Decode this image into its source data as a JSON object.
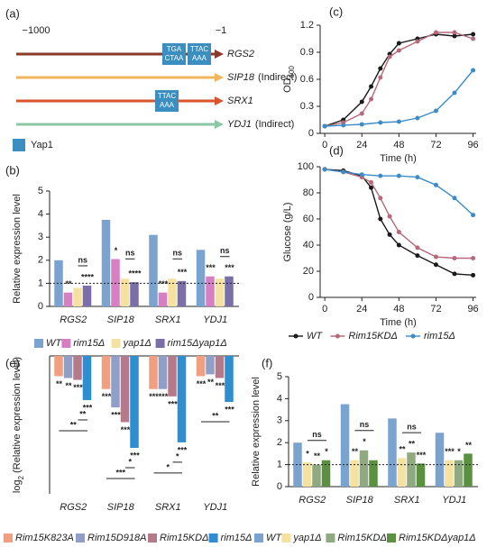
{
  "diagram": {
    "panel": "(a)",
    "start": "−1000",
    "end": "−1",
    "legend": "Yap1",
    "genes": [
      {
        "name": "RGS2",
        "color": "#8b3a2a",
        "sites": [
          [
            "TGA",
            "CTAA"
          ],
          [
            "TTAC",
            "AAA"
          ]
        ]
      },
      {
        "name": "SIP18",
        "note": "(Indirect)",
        "color": "#f2b45c",
        "sites": []
      },
      {
        "name": "SRX1",
        "color": "#d9532b",
        "sites": [
          [
            "TTAC",
            "AAA"
          ]
        ]
      },
      {
        "name": "YDJ1",
        "note": "(Indirect)",
        "color": "#8cc7a5",
        "sites": []
      }
    ]
  },
  "chart_data": [
    {
      "type": "bar",
      "panel": "(b)",
      "ylabel": [
        {
          "text": "Relative expression level"
        }
      ],
      "categories": [
        "RGS2",
        "SIP18",
        "SRX1",
        "YDJ1"
      ],
      "series": [
        {
          "name": "WT",
          "color": "#7ba3cf",
          "values": [
            2.0,
            3.75,
            3.1,
            2.45
          ]
        },
        {
          "name": "rim15Δ",
          "color": "#d67fc2",
          "values": [
            0.6,
            2.05,
            0.6,
            1.3
          ]
        },
        {
          "name": "yap1Δ",
          "color": "#f6e2a0",
          "values": [
            0.8,
            1.2,
            1.2,
            1.2
          ]
        },
        {
          "name": "rim15Δyap1Δ",
          "color": "#7a6fa8",
          "values": [
            0.9,
            1.05,
            1.1,
            1.3
          ]
        }
      ],
      "ylim": [
        0,
        5
      ],
      "yticks": [
        0,
        1,
        2,
        3,
        4,
        5
      ],
      "reference_line": 1,
      "legend": "below",
      "annotations": [
        {
          "category": 0,
          "series": 1,
          "text": "**"
        },
        {
          "category": 0,
          "series": 3,
          "text": "****"
        },
        {
          "category": 0,
          "from": 2,
          "to": 3,
          "text": "ns"
        },
        {
          "category": 1,
          "series": 1,
          "text": "*"
        },
        {
          "category": 1,
          "series": 3,
          "text": "****"
        },
        {
          "category": 1,
          "from": 2,
          "to": 3,
          "text": "ns"
        },
        {
          "category": 2,
          "series": 1,
          "text": "***"
        },
        {
          "category": 2,
          "series": 3,
          "text": "***"
        },
        {
          "category": 2,
          "from": 2,
          "to": 3,
          "text": "ns"
        },
        {
          "category": 3,
          "series": 1,
          "text": "***"
        },
        {
          "category": 3,
          "series": 3,
          "text": "***"
        },
        {
          "category": 3,
          "from": 2,
          "to": 3,
          "text": "ns"
        }
      ]
    },
    {
      "type": "line",
      "panel": "(c)",
      "ylabel": [
        {
          "text": "OD"
        },
        {
          "text": "600",
          "sub": true
        }
      ],
      "xlabel": "Time (h)",
      "series": [
        {
          "name": "WT",
          "color": "#1a1a1a",
          "x": [
            0,
            12,
            24,
            30,
            36,
            42,
            48,
            60,
            72,
            84,
            96
          ],
          "values": [
            0.08,
            0.15,
            0.35,
            0.52,
            0.72,
            0.88,
            1.0,
            1.05,
            1.1,
            1.08,
            1.1
          ]
        },
        {
          "name": "Rim15KDΔ",
          "color": "#b5697a",
          "x": [
            0,
            12,
            24,
            30,
            36,
            42,
            48,
            60,
            72,
            84,
            96
          ],
          "values": [
            0.08,
            0.12,
            0.22,
            0.38,
            0.62,
            0.85,
            0.92,
            1.02,
            1.12,
            1.12,
            1.05
          ]
        },
        {
          "name": "rim15Δ",
          "color": "#3d8cc8",
          "x": [
            0,
            12,
            24,
            36,
            48,
            60,
            72,
            84,
            96
          ],
          "values": [
            0.08,
            0.09,
            0.1,
            0.12,
            0.13,
            0.17,
            0.25,
            0.45,
            0.7
          ]
        }
      ],
      "xlim": [
        -3,
        98
      ],
      "xticks": [
        0,
        24,
        48,
        72,
        96
      ],
      "ylim": [
        0,
        1.2
      ],
      "yticks": [
        0,
        0.3,
        0.6,
        0.9,
        1.2
      ]
    },
    {
      "type": "line",
      "panel": "(d)",
      "ylabel": [
        {
          "text": "Glucose (g/L)"
        }
      ],
      "xlabel": "Time (h)",
      "series": [
        {
          "name": "WT",
          "color": "#1a1a1a",
          "x": [
            0,
            12,
            24,
            30,
            36,
            42,
            48,
            60,
            72,
            84,
            96
          ],
          "values": [
            98,
            97,
            93,
            84,
            60,
            48,
            40,
            32,
            25,
            18,
            17
          ]
        },
        {
          "name": "Rim15KDΔ",
          "color": "#b5697a",
          "x": [
            0,
            12,
            24,
            30,
            36,
            42,
            48,
            60,
            72,
            84,
            96
          ],
          "values": [
            98,
            96,
            92,
            88,
            76,
            62,
            50,
            38,
            31,
            30,
            30
          ]
        },
        {
          "name": "rim15Δ",
          "color": "#3d8cc8",
          "x": [
            0,
            12,
            24,
            36,
            48,
            60,
            72,
            84,
            96
          ],
          "values": [
            98,
            96,
            94,
            93,
            93,
            92,
            86,
            76,
            63
          ]
        }
      ],
      "xlim": [
        -3,
        98
      ],
      "xticks": [
        0,
        24,
        48,
        72,
        96
      ],
      "ylim": [
        0,
        100
      ],
      "yticks": [
        0,
        20,
        40,
        60,
        80,
        100
      ],
      "legend": "below"
    },
    {
      "type": "bar",
      "panel": "(e)",
      "ylabel": [
        {
          "text": "log"
        },
        {
          "text": "2",
          "sub": true
        },
        {
          "text": " (Relative expression level)"
        }
      ],
      "categories": [
        "RGS2",
        "SIP18",
        "SRX1",
        "YDJ1"
      ],
      "series": [
        {
          "name": "Rim15K823A",
          "color": "#f0a080",
          "values": [
            -1.1,
            -1.8,
            -1.8,
            -1.1
          ]
        },
        {
          "name": "Rim15D918A",
          "color": "#8f9fc8",
          "values": [
            -1.2,
            -2.8,
            -1.8,
            -1.0
          ]
        },
        {
          "name": "Rim15KDΔ",
          "color": "#b57a8a",
          "values": [
            -1.3,
            -3.6,
            -2.2,
            -1.2
          ]
        },
        {
          "name": "rim15Δ",
          "color": "#2f8ed0",
          "values": [
            -2.4,
            -5.0,
            -4.7,
            -2.5
          ]
        }
      ],
      "ylim": [
        -7.5,
        0
      ],
      "legend": "below",
      "annotations": [
        {
          "category": 0,
          "series": 0,
          "text": "**"
        },
        {
          "category": 0,
          "series": 1,
          "text": "**"
        },
        {
          "category": 0,
          "series": 2,
          "text": "***"
        },
        {
          "category": 0,
          "series": 3,
          "text": "***"
        },
        {
          "category": 0,
          "from": 2,
          "to": 3,
          "text": "**"
        },
        {
          "category": 0,
          "from": 0,
          "to": 3,
          "text": "**"
        },
        {
          "category": 1,
          "series": 0,
          "text": "***"
        },
        {
          "category": 1,
          "series": 1,
          "text": "***"
        },
        {
          "category": 1,
          "series": 2,
          "text": "***"
        },
        {
          "category": 1,
          "series": 3,
          "text": "***"
        },
        {
          "category": 1,
          "from": 2,
          "to": 3,
          "text": "*"
        },
        {
          "category": 1,
          "from": 0,
          "to": 3,
          "text": "***"
        },
        {
          "category": 2,
          "series": 0,
          "text": "***"
        },
        {
          "category": 2,
          "series": 1,
          "text": "***"
        },
        {
          "category": 2,
          "series": 2,
          "text": "***"
        },
        {
          "category": 2,
          "series": 3,
          "text": "***"
        },
        {
          "category": 2,
          "from": 2,
          "to": 3,
          "text": "*"
        },
        {
          "category": 2,
          "from": 0,
          "to": 3,
          "text": "*"
        },
        {
          "category": 3,
          "series": 0,
          "text": "***"
        },
        {
          "category": 3,
          "series": 1,
          "text": "**"
        },
        {
          "category": 3,
          "series": 2,
          "text": "***"
        },
        {
          "category": 3,
          "series": 3,
          "text": "***"
        },
        {
          "category": 3,
          "from": 0,
          "to": 3,
          "text": "**"
        }
      ]
    },
    {
      "type": "bar",
      "panel": "(f)",
      "ylabel": [
        {
          "text": "Relative expression level"
        }
      ],
      "categories": [
        "RGS2",
        "SIP18",
        "SRX1",
        "YDJ1"
      ],
      "series": [
        {
          "name": "WT",
          "color": "#7ba3cf",
          "values": [
            2.0,
            3.75,
            3.1,
            2.45
          ]
        },
        {
          "name": "yap1Δ",
          "color": "#f6e2a0",
          "values": [
            1.1,
            1.2,
            1.3,
            1.2
          ]
        },
        {
          "name": "Rim15KDΔ",
          "color": "#8faa80",
          "values": [
            1.0,
            1.65,
            1.55,
            1.2
          ]
        },
        {
          "name": "Rim15KDΔyap1Δ",
          "color": "#5a9040",
          "values": [
            1.2,
            1.2,
            1.05,
            1.5
          ]
        }
      ],
      "ylim": [
        0,
        5
      ],
      "yticks": [
        0,
        1,
        2,
        3,
        4,
        5
      ],
      "reference_line": 1,
      "legend": "below",
      "annotations": [
        {
          "category": 0,
          "series": 1,
          "text": "*"
        },
        {
          "category": 0,
          "series": 2,
          "text": "**"
        },
        {
          "category": 0,
          "series": 3,
          "text": "*"
        },
        {
          "category": 0,
          "from": 1,
          "to": 3,
          "text": "ns"
        },
        {
          "category": 1,
          "series": 1,
          "text": "**"
        },
        {
          "category": 1,
          "series": 2,
          "text": "*"
        },
        {
          "category": 1,
          "from": 1,
          "to": 3,
          "text": "ns"
        },
        {
          "category": 2,
          "series": 1,
          "text": "**"
        },
        {
          "category": 2,
          "series": 2,
          "text": "**"
        },
        {
          "category": 2,
          "series": 3,
          "text": "***"
        },
        {
          "category": 2,
          "from": 1,
          "to": 3,
          "text": "ns"
        },
        {
          "category": 3,
          "series": 1,
          "text": "***"
        },
        {
          "category": 3,
          "series": 2,
          "text": "*"
        },
        {
          "category": 3,
          "series": 3,
          "text": "**"
        }
      ]
    }
  ]
}
